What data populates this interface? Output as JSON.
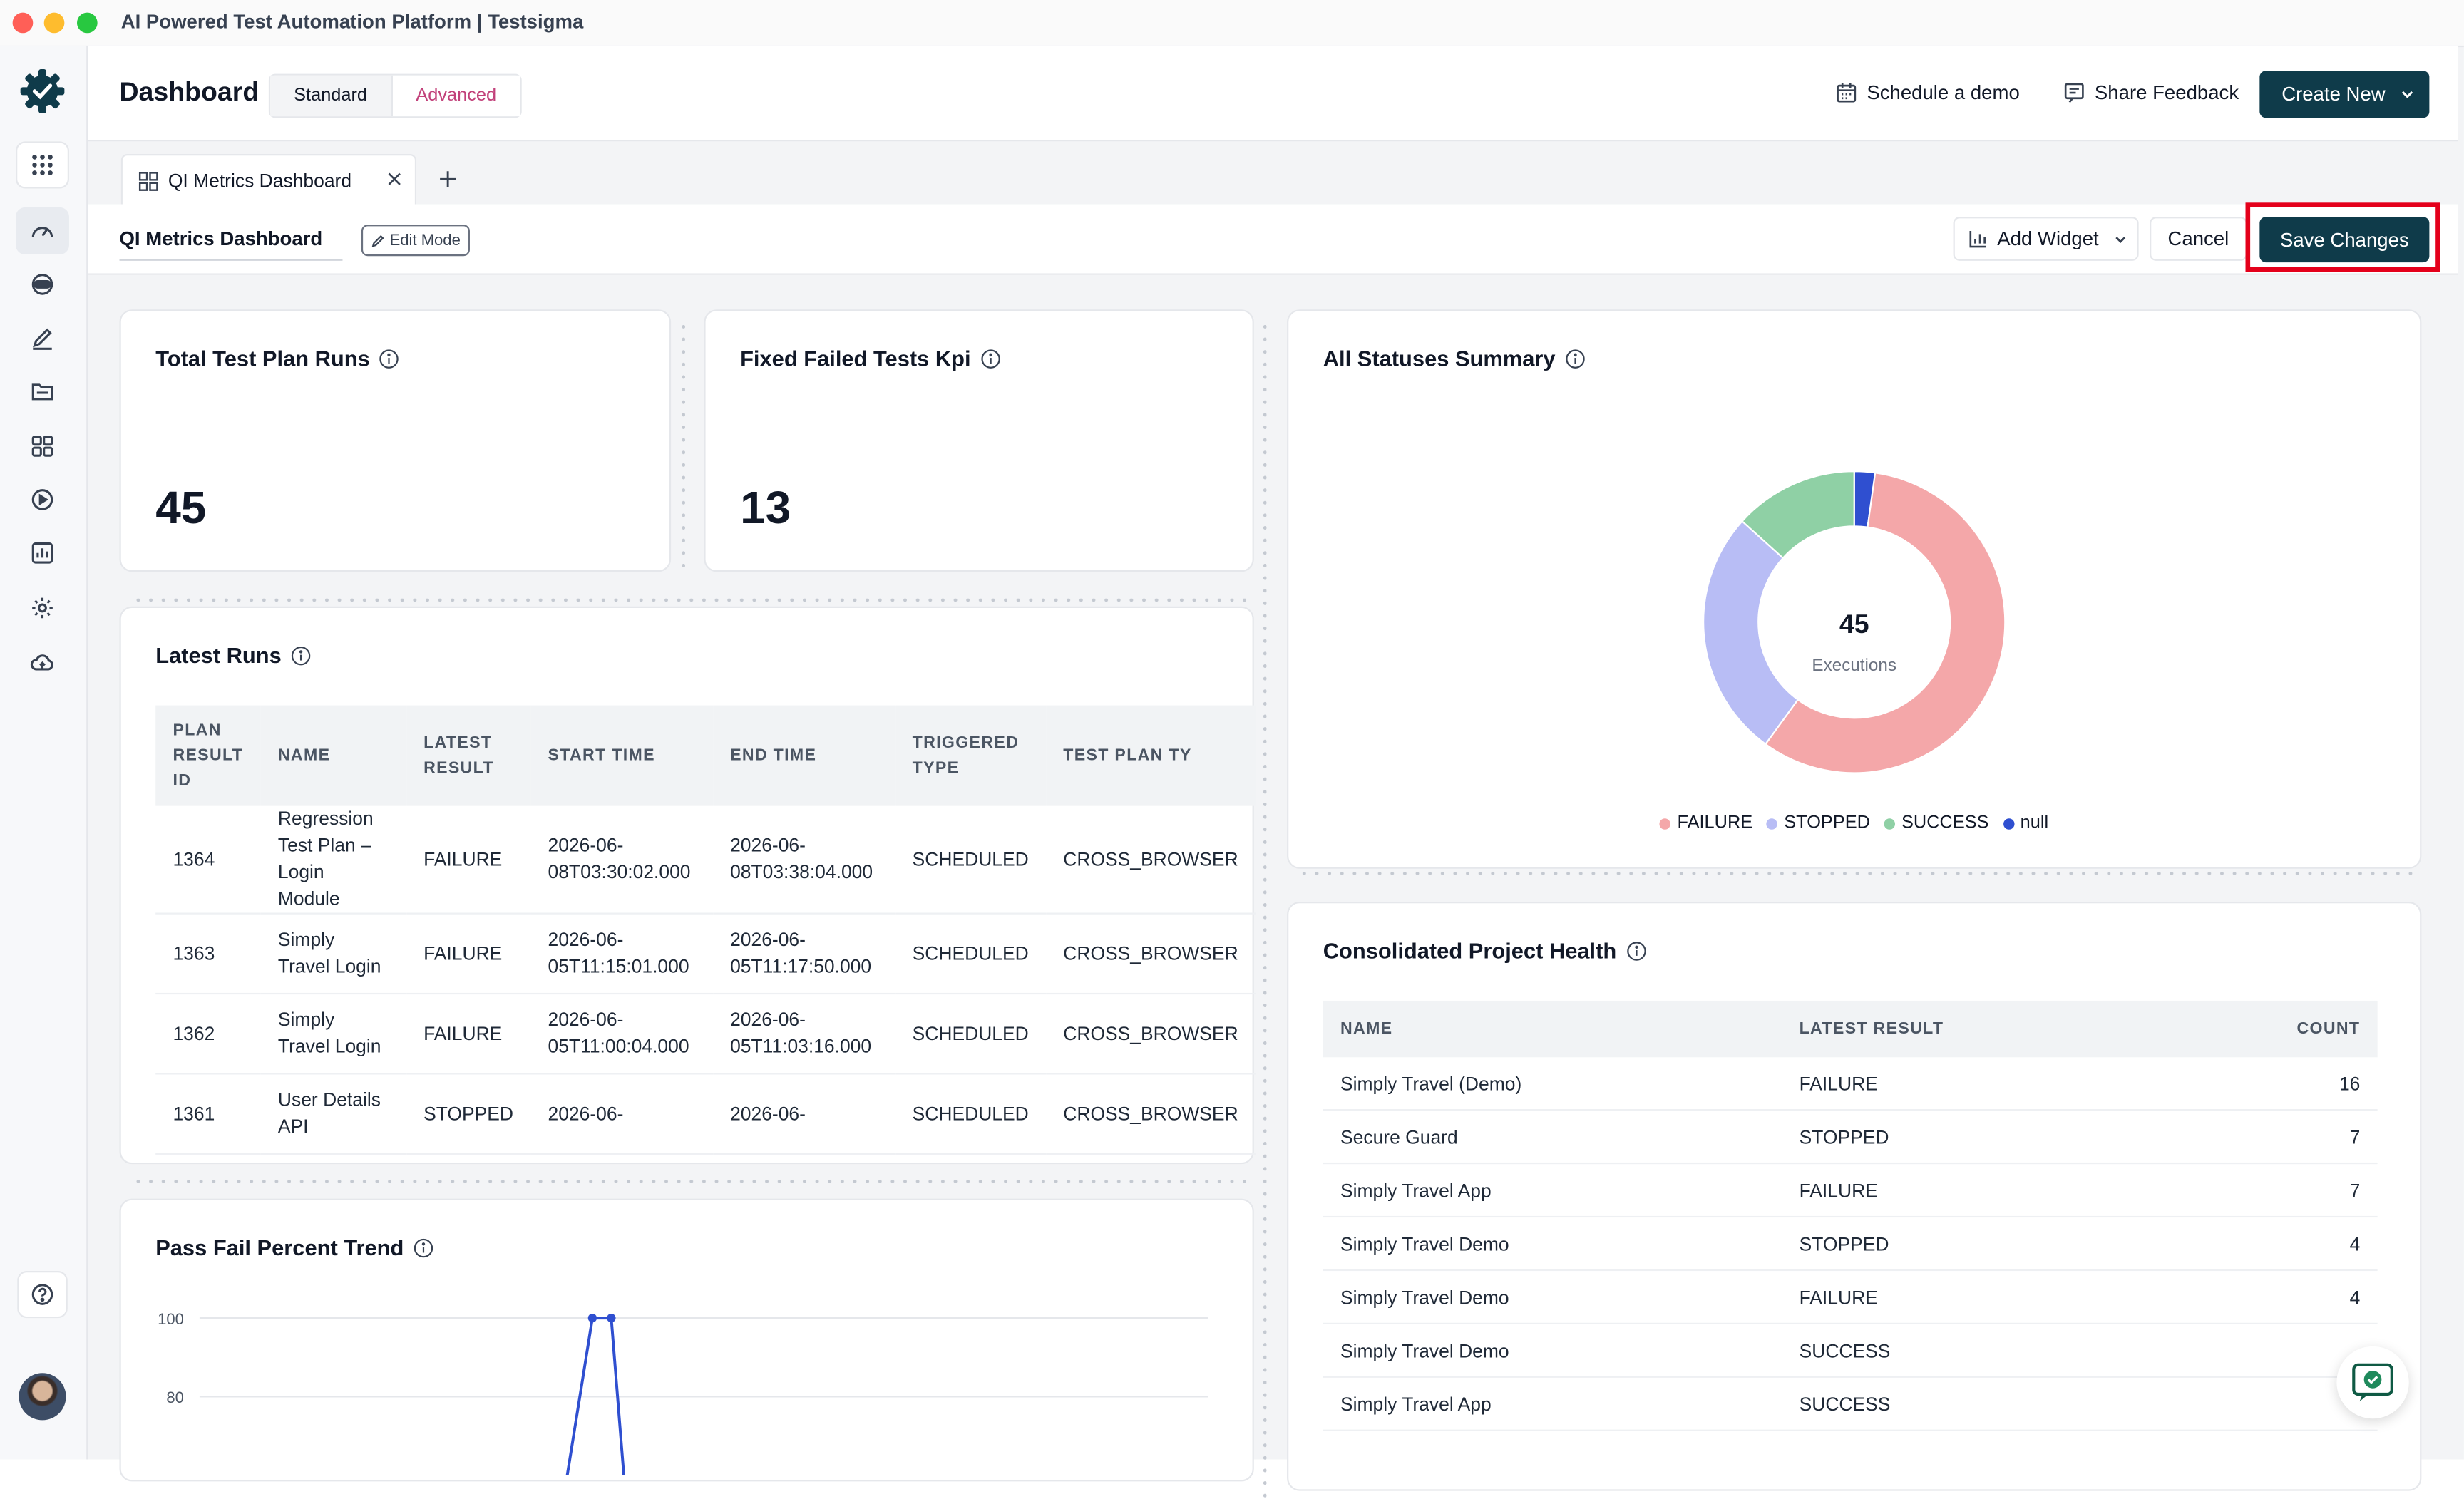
{
  "window": {
    "title": "AI Powered Test Automation Platform | Testsigma"
  },
  "header": {
    "title": "Dashboard",
    "view_toggle": {
      "standard": "Standard",
      "advanced": "Advanced",
      "selected": "Advanced"
    },
    "schedule_demo": "Schedule a demo",
    "share_feedback": "Share Feedback",
    "create_new": "Create New"
  },
  "sidebar": {
    "items": [
      {
        "icon": "apps-grid-icon"
      },
      {
        "icon": "dashboard-gauge-icon",
        "active": true
      },
      {
        "icon": "robot-icon"
      },
      {
        "icon": "edit-pen-icon"
      },
      {
        "icon": "folder-icon"
      },
      {
        "icon": "widgets-grid-icon"
      },
      {
        "icon": "play-circle-icon"
      },
      {
        "icon": "bar-chart-icon"
      },
      {
        "icon": "settings-gear-icon"
      },
      {
        "icon": "cloud-upload-icon"
      },
      {
        "icon": "help-icon"
      }
    ]
  },
  "tabs": [
    {
      "label": "QI Metrics Dashboard"
    }
  ],
  "toolbar": {
    "dashboard_name": "QI Metrics Dashboard",
    "mode_badge": "Edit Mode",
    "add_widget": "Add Widget",
    "cancel": "Cancel",
    "save_changes": "Save Changes"
  },
  "widgets": {
    "total_runs": {
      "title": "Total Test Plan Runs",
      "value": "45"
    },
    "fixed_failed": {
      "title": "Fixed Failed Tests Kpi",
      "value": "13"
    },
    "all_statuses": {
      "title": "All Statuses Summary",
      "center_value": "45",
      "center_label": "Executions",
      "legend": [
        {
          "label": "FAILURE",
          "color": "#f4a7a9"
        },
        {
          "label": "STOPPED",
          "color": "#b8bdf5"
        },
        {
          "label": "SUCCESS",
          "color": "#8fd0a5"
        },
        {
          "label": "null",
          "color": "#2f4fd0"
        }
      ]
    },
    "latest_runs": {
      "title": "Latest Runs",
      "columns": [
        "PLAN RESULT ID",
        "NAME",
        "LATEST RESULT",
        "START TIME",
        "END TIME",
        "TRIGGERED TYPE",
        "TEST PLAN TY"
      ],
      "rows": [
        {
          "id": "1364",
          "name": "Regression Test Plan – Login Module",
          "result": "FAILURE",
          "start": "2026-06-08T03:30:02.000",
          "end": "2026-06-08T03:38:04.000",
          "triggered": "SCHEDULED",
          "type": "CROSS_BROWSER"
        },
        {
          "id": "1363",
          "name": "Simply Travel Login",
          "result": "FAILURE",
          "start": "2026-06-05T11:15:01.000",
          "end": "2026-06-05T11:17:50.000",
          "triggered": "SCHEDULED",
          "type": "CROSS_BROWSER"
        },
        {
          "id": "1362",
          "name": "Simply Travel Login",
          "result": "FAILURE",
          "start": "2026-06-05T11:00:04.000",
          "end": "2026-06-05T11:03:16.000",
          "triggered": "SCHEDULED",
          "type": "CROSS_BROWSER"
        },
        {
          "id": "1361",
          "name": "User Details API",
          "result": "STOPPED",
          "start": "2026-06-",
          "end": "2026-06-",
          "triggered": "SCHEDULED",
          "type": "CROSS_BROWSER"
        }
      ]
    },
    "pass_fail": {
      "title": "Pass Fail Percent Trend",
      "y_ticks": [
        "100",
        "80"
      ]
    },
    "project_health": {
      "title": "Consolidated Project Health",
      "columns": [
        "NAME",
        "LATEST RESULT",
        "COUNT"
      ],
      "rows": [
        {
          "name": "Simply Travel (Demo)",
          "result": "FAILURE",
          "count": "16"
        },
        {
          "name": "Secure Guard",
          "result": "STOPPED",
          "count": "7"
        },
        {
          "name": "Simply Travel App",
          "result": "FAILURE",
          "count": "7"
        },
        {
          "name": "Simply Travel Demo",
          "result": "STOPPED",
          "count": "4"
        },
        {
          "name": "Simply Travel Demo",
          "result": "FAILURE",
          "count": "4"
        },
        {
          "name": "Simply Travel Demo",
          "result": "SUCCESS",
          "count": ""
        },
        {
          "name": "Simply Travel App",
          "result": "SUCCESS",
          "count": ""
        }
      ]
    }
  },
  "chart_data": [
    {
      "type": "pie",
      "title": "All Statuses Summary",
      "categories": [
        "FAILURE",
        "STOPPED",
        "SUCCESS",
        "null"
      ],
      "values": [
        26,
        12,
        6,
        1
      ],
      "total": 45,
      "colors": [
        "#f4a7a9",
        "#b8bdf5",
        "#8fd0a5",
        "#2f4fd0"
      ],
      "legend": "bottom"
    },
    {
      "type": "line",
      "title": "Pass Fail Percent Trend",
      "y_ticks": [
        80,
        100
      ],
      "ylim": [
        60,
        100
      ],
      "x": [
        1,
        2,
        3,
        4
      ],
      "series": [
        {
          "values": [
            60,
            100,
            100,
            60
          ],
          "color": "#2f4fd0"
        }
      ],
      "grid": true
    }
  ]
}
